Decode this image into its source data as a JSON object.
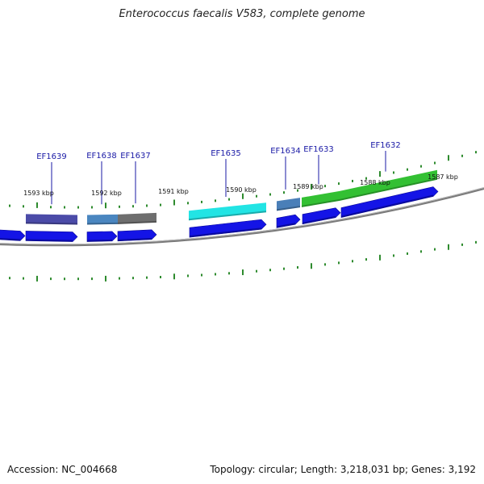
{
  "title": "Enterococcus faecalis V583, complete genome",
  "footer": {
    "accession": "Accession: NC_004668",
    "summary": "Topology: circular; Length: 3,218,031 bp; Genes: 3,192"
  },
  "colors": {
    "cds_arrow": "#1414e6",
    "backbone": "#7a7a7a",
    "tick": "#2e8b2e",
    "label_blue": "#1a1aa6"
  },
  "kbp_labels": [
    "1593 kbp",
    "1592 kbp",
    "1591 kbp",
    "1590 kbp",
    "1589 kbp",
    "1588 kbp",
    "1587 kbp"
  ],
  "genes": [
    {
      "id": "EF1639",
      "color": "#4b4ba8"
    },
    {
      "id": "EF1638",
      "color": "#4a86c0"
    },
    {
      "id": "EF1637",
      "color": "#6e6e6e"
    },
    {
      "id": "EF1635",
      "color": "#22e4e4"
    },
    {
      "id": "EF1634",
      "color": "#4a7fb8"
    },
    {
      "id": "EF1633",
      "color": "#33c033"
    },
    {
      "id": "EF1632",
      "color": "#33c033"
    }
  ]
}
